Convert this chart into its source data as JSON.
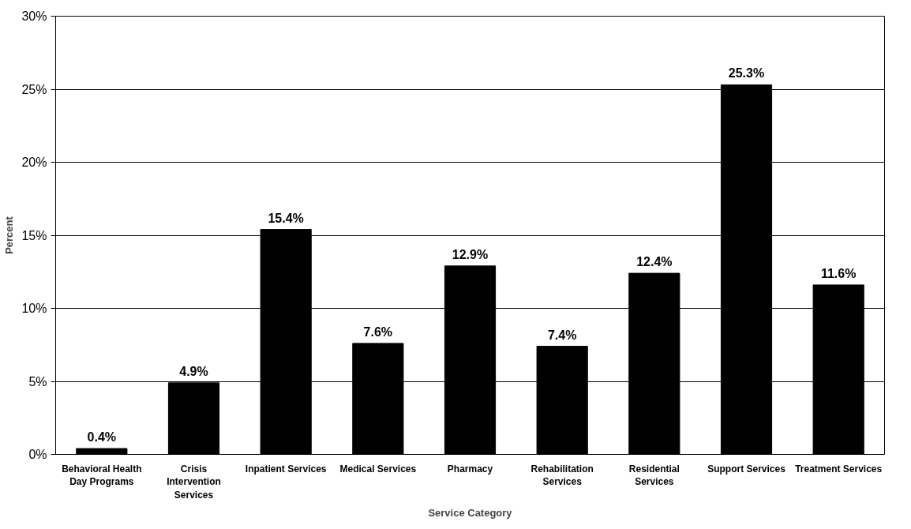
{
  "chart_data": {
    "type": "bar",
    "xlabel": "Service Category",
    "ylabel": "Percent",
    "categories": [
      "Behavioral Health Day Programs",
      "Crisis Intervention Services",
      "Inpatient Services",
      "Medical Services",
      "Pharmacy",
      "Rehabilitation Services",
      "Residential Services",
      "Support Services",
      "Treatment Services"
    ],
    "values": [
      0.4,
      4.9,
      15.4,
      7.6,
      12.9,
      7.4,
      12.4,
      25.3,
      11.6
    ],
    "value_labels": [
      "0.4%",
      "4.9%",
      "15.4%",
      "7.6%",
      "12.9%",
      "7.4%",
      "12.4%",
      "25.3%",
      "11.6%"
    ],
    "color": "#000000",
    "ylim": [
      0,
      30
    ],
    "yticks": [
      {
        "value": 0,
        "label": "0%"
      },
      {
        "value": 5,
        "label": "5%"
      },
      {
        "value": 10,
        "label": "10%"
      },
      {
        "value": 15,
        "label": "15%"
      },
      {
        "value": 20,
        "label": "20%"
      },
      {
        "value": 25,
        "label": "25%"
      },
      {
        "value": 30,
        "label": "30%"
      }
    ],
    "grid": "y"
  }
}
